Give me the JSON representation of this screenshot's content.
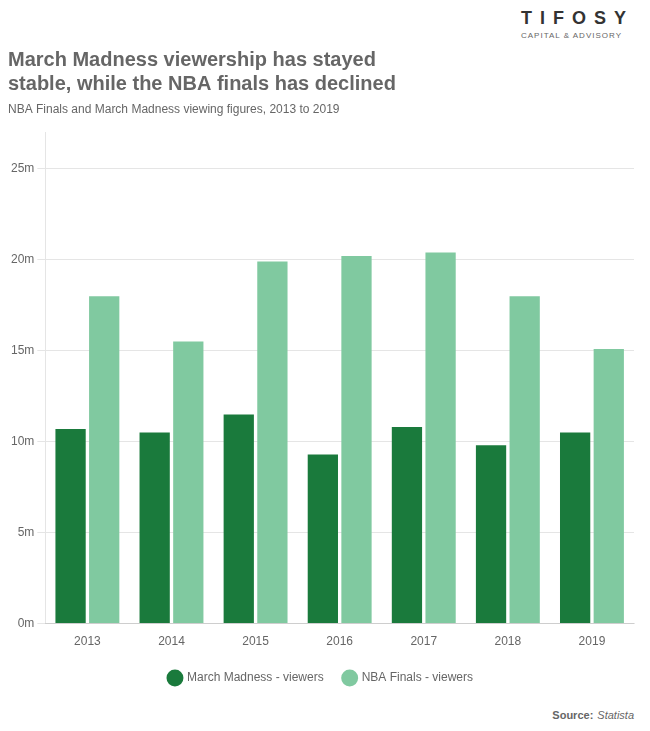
{
  "chart_data": {
    "type": "bar",
    "title": [
      "March Madness viewership has stayed",
      "stable, while the NBA finals has declined"
    ],
    "subtitle": "NBA Finals and March Madness viewing figures, 2013 to 2019",
    "annotations": [
      "TIFOSY",
      "CAPITAL & ADVISORY",
      "Source:",
      "Statista"
    ],
    "categories": [
      "2013",
      "2014",
      "2015",
      "2016",
      "2017",
      "2018",
      "2019"
    ],
    "series": [
      {
        "name": "March Madness - viewers",
        "color": "#1a7a3c",
        "values": [
          10.7,
          10.5,
          11.5,
          9.3,
          10.8,
          9.8,
          10.5
        ]
      },
      {
        "name": "NBA Finals - viewers",
        "color": "#80c9a0",
        "values": [
          18.0,
          15.5,
          19.9,
          20.2,
          20.4,
          18.0,
          15.1
        ]
      }
    ],
    "ylim": [
      0,
      27
    ],
    "yticks": [
      {
        "value": 0,
        "label": "0m"
      },
      {
        "value": 5,
        "label": "5m"
      },
      {
        "value": 10,
        "label": "10m"
      },
      {
        "value": 15,
        "label": "15m"
      },
      {
        "value": 20,
        "label": "20m"
      },
      {
        "value": 25,
        "label": "25m"
      }
    ],
    "grid": true,
    "legend": "bottom"
  }
}
